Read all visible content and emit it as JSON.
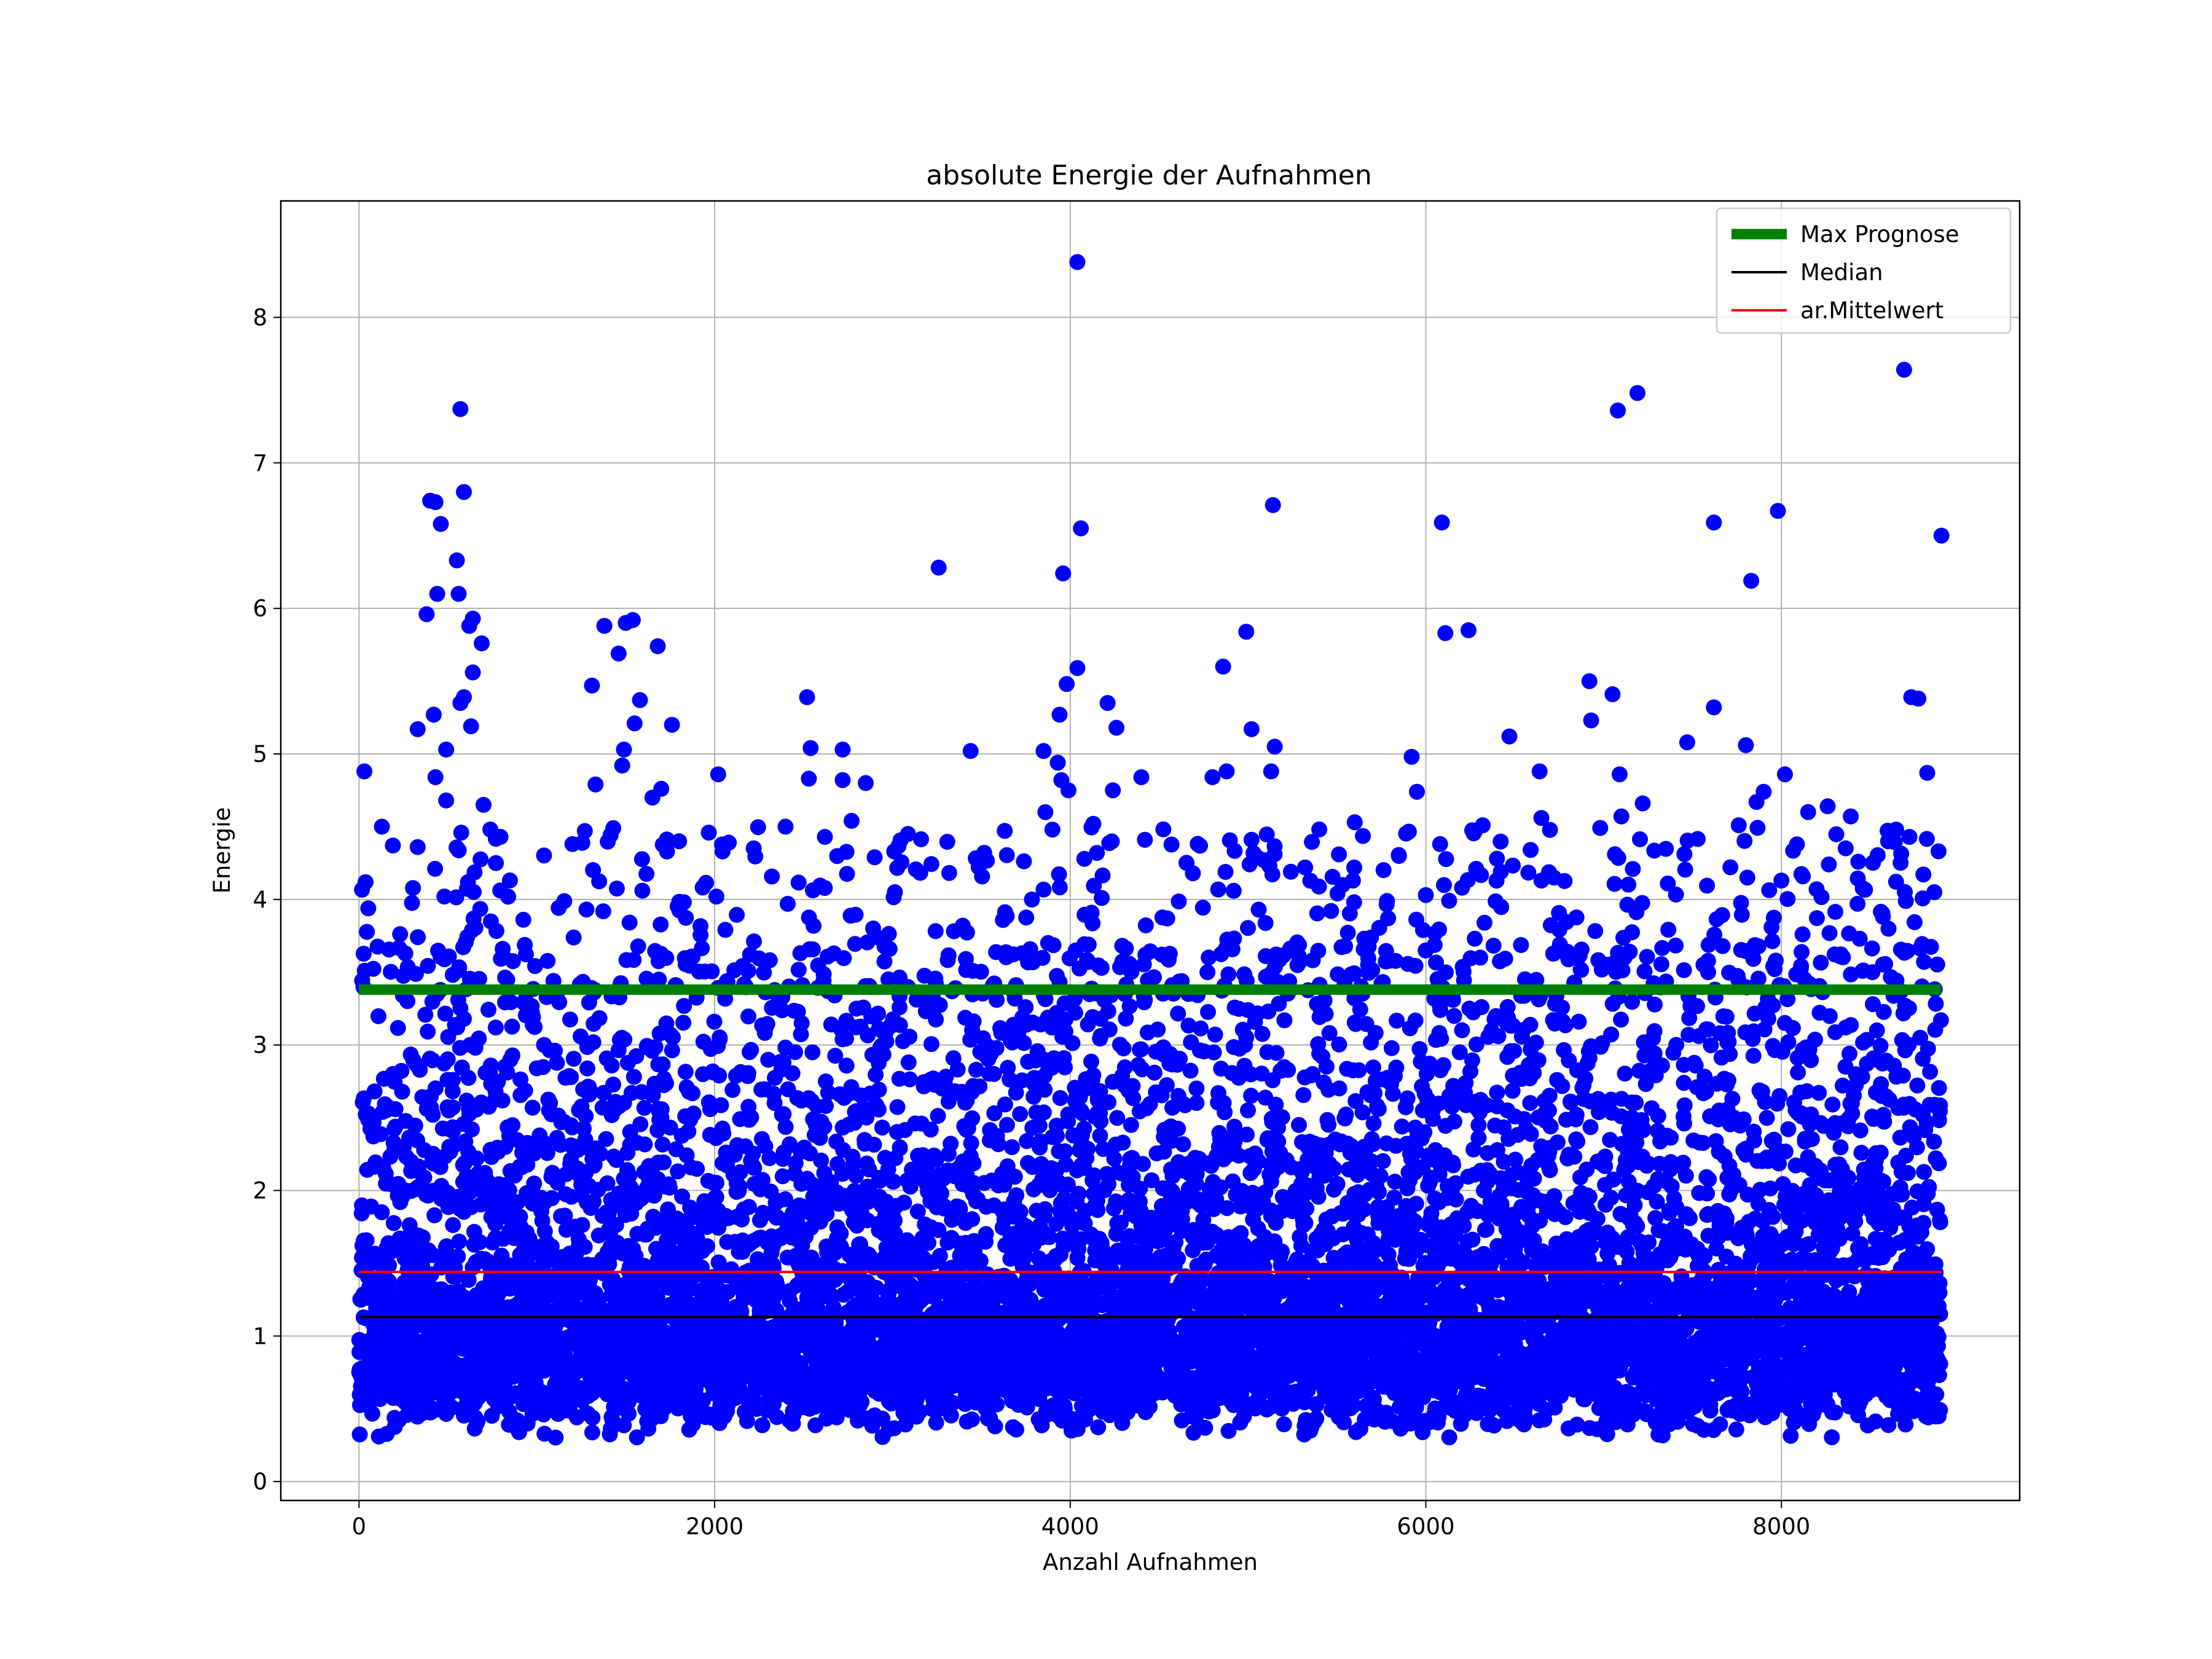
{
  "chart_data": {
    "type": "scatter",
    "title": "absolute Energie der Aufnahmen",
    "xlabel": "Anzahl Aufnahmen",
    "ylabel": "Energie",
    "xlim": [
      -440,
      9340
    ],
    "ylim": [
      -0.13,
      8.8
    ],
    "xticks": [
      0,
      2000,
      4000,
      6000,
      8000
    ],
    "yticks": [
      0,
      1,
      2,
      3,
      4,
      5,
      6,
      7,
      8
    ],
    "grid": true,
    "legend_position": "top-right",
    "n_points": 8900,
    "series": [
      {
        "name": "Energie",
        "kind": "scatter",
        "color": "#0000ff",
        "points": [
          [
            4040,
            8.38
          ],
          [
            8690,
            7.64
          ],
          [
            7190,
            7.48
          ],
          [
            570,
            7.37
          ],
          [
            7080,
            7.36
          ],
          [
            400,
            6.74
          ],
          [
            430,
            6.73
          ],
          [
            590,
            6.8
          ],
          [
            5140,
            6.71
          ],
          [
            7980,
            6.67
          ],
          [
            6090,
            6.59
          ],
          [
            7620,
            6.59
          ],
          [
            4060,
            6.55
          ],
          [
            8900,
            6.5
          ],
          [
            460,
            6.58
          ],
          [
            550,
            6.33
          ],
          [
            3260,
            6.28
          ],
          [
            3960,
            6.24
          ],
          [
            7830,
            6.19
          ],
          [
            440,
            6.1
          ],
          [
            560,
            6.1
          ],
          [
            380,
            5.96
          ],
          [
            640,
            5.93
          ],
          [
            1500,
            5.9
          ],
          [
            1540,
            5.92
          ],
          [
            1380,
            5.88
          ],
          [
            620,
            5.88
          ],
          [
            6110,
            5.83
          ],
          [
            6240,
            5.85
          ],
          [
            4990,
            5.84
          ],
          [
            690,
            5.76
          ],
          [
            1460,
            5.69
          ],
          [
            1680,
            5.74
          ],
          [
            4860,
            5.6
          ],
          [
            4040,
            5.59
          ],
          [
            640,
            5.56
          ],
          [
            6920,
            5.5
          ],
          [
            3980,
            5.48
          ],
          [
            1310,
            5.47
          ],
          [
            590,
            5.39
          ],
          [
            7050,
            5.41
          ],
          [
            8730,
            5.39
          ],
          [
            8770,
            5.38
          ],
          [
            2520,
            5.39
          ],
          [
            570,
            5.35
          ],
          [
            1580,
            5.37
          ],
          [
            4210,
            5.35
          ],
          [
            7620,
            5.32
          ],
          [
            420,
            5.27
          ],
          [
            3940,
            5.27
          ],
          [
            1760,
            5.2
          ],
          [
            330,
            5.17
          ],
          [
            630,
            5.19
          ],
          [
            6930,
            5.23
          ],
          [
            5020,
            5.17
          ],
          [
            4260,
            5.18
          ],
          [
            1550,
            5.21
          ],
          [
            7470,
            5.08
          ],
          [
            6470,
            5.12
          ],
          [
            7800,
            5.06
          ],
          [
            5150,
            5.05
          ],
          [
            490,
            5.03
          ],
          [
            1490,
            5.03
          ],
          [
            2540,
            5.04
          ],
          [
            2720,
            5.03
          ],
          [
            3440,
            5.02
          ],
          [
            3850,
            5.02
          ],
          [
            5920,
            4.98
          ],
          [
            3930,
            4.94
          ],
          [
            1480,
            4.92
          ],
          [
            5130,
            4.88
          ],
          [
            4880,
            4.88
          ],
          [
            8820,
            4.87
          ],
          [
            30,
            4.88
          ],
          [
            6640,
            4.88
          ],
          [
            2020,
            4.86
          ],
          [
            8020,
            4.86
          ],
          [
            4400,
            4.84
          ],
          [
            4800,
            4.84
          ],
          [
            7090,
            4.86
          ],
          [
            3950,
            4.82
          ],
          [
            2720,
            4.82
          ],
          [
            2530,
            4.83
          ],
          [
            2850,
            4.8
          ],
          [
            430,
            4.84
          ],
          [
            1330,
            4.79
          ],
          [
            1700,
            4.76
          ],
          [
            5950,
            4.74
          ],
          [
            3990,
            4.75
          ],
          [
            4240,
            4.75
          ],
          [
            490,
            4.68
          ],
          [
            7900,
            4.74
          ],
          [
            1650,
            4.7
          ],
          [
            7220,
            4.66
          ],
          [
            700,
            4.65
          ],
          [
            7860,
            4.67
          ],
          [
            8260,
            4.64
          ],
          [
            8150,
            4.6
          ],
          [
            8390,
            4.57
          ],
          [
            3860,
            4.6
          ],
          [
            7100,
            4.57
          ],
          [
            5600,
            4.53
          ],
          [
            2770,
            4.54
          ],
          [
            6320,
            4.51
          ],
          [
            4130,
            4.52
          ],
          [
            1270,
            4.47
          ],
          [
            1430,
            4.49
          ],
          [
            3900,
            4.48
          ],
          [
            6650,
            4.56
          ],
          [
            7760,
            4.51
          ],
          [
            8720,
            4.43
          ],
          [
            8600,
            4.4
          ],
          [
            6080,
            4.38
          ],
          [
            2620,
            4.43
          ],
          [
            1800,
            4.4
          ],
          [
            330,
            4.36
          ],
          [
            4420,
            4.41
          ],
          [
            5020,
            4.41
          ],
          [
            1200,
            4.38
          ],
          [
            3010,
            4.33
          ],
          [
            4150,
            4.32
          ],
          [
            5090,
            4.27
          ],
          [
            6400,
            4.28
          ],
          [
            770,
            4.25
          ],
          [
            5590,
            4.13
          ],
          [
            4690,
            4.18
          ],
          [
            8000,
            4.13
          ],
          [
            6720,
            4.15
          ],
          [
            8860,
            4.05
          ],
          [
            2010,
            4.02
          ],
          [
            6000,
            4.03
          ],
          [
            480,
            4.02
          ],
          [
            5060,
            3.93
          ],
          [
            8440,
            3.73
          ],
          [
            6330,
            3.84
          ]
        ]
      },
      {
        "name": "Max Prognose",
        "kind": "hline",
        "y": 3.38,
        "color": "#008000"
      },
      {
        "name": "Median",
        "kind": "hline",
        "y": 1.13,
        "color": "#000000"
      },
      {
        "name": "ar.Mittelwert",
        "kind": "hline",
        "y": 1.44,
        "color": "#ff0000"
      }
    ]
  }
}
